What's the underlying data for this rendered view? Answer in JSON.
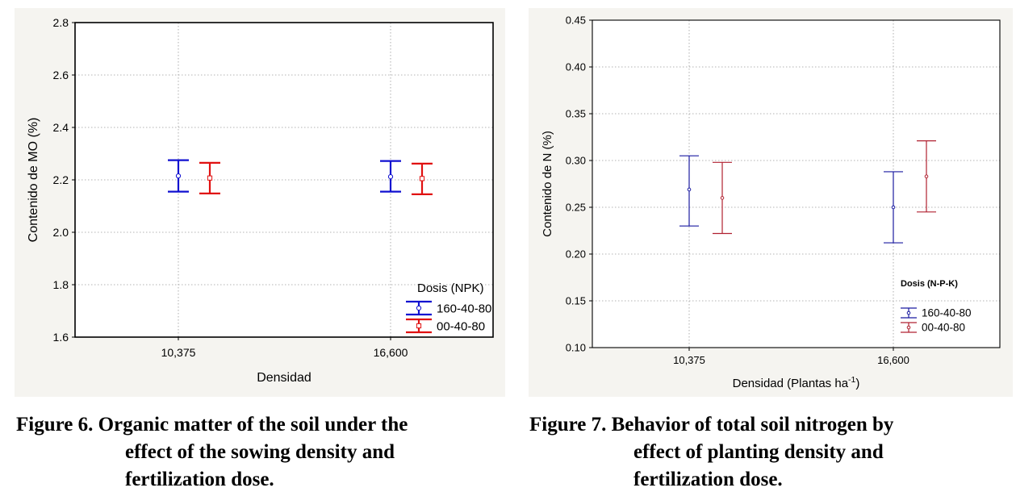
{
  "chart_data": [
    {
      "type": "scatter",
      "title": "",
      "xlabel": "Densidad",
      "ylabel": "Contenido de MO (%)",
      "categories": [
        "10,375",
        "16,600"
      ],
      "ylim": [
        1.6,
        2.8
      ],
      "yticks": [
        "1.6",
        "1.8",
        "2.0",
        "2.2",
        "2.4",
        "2.6",
        "2.8"
      ],
      "grid": true,
      "legend_title": "Dosis (NPK)",
      "legend_position": "bottom-right",
      "series": [
        {
          "name": "160-40-80",
          "color": "#1010d0",
          "marker": "circle",
          "mean": [
            2.215,
            2.212
          ],
          "lower": [
            2.155,
            2.155
          ],
          "upper": [
            2.275,
            2.272
          ]
        },
        {
          "name": "00-40-80",
          "color": "#e01010",
          "marker": "square",
          "mean": [
            2.207,
            2.205
          ],
          "lower": [
            2.148,
            2.145
          ],
          "upper": [
            2.265,
            2.262
          ]
        }
      ]
    },
    {
      "type": "scatter",
      "title": "",
      "xlabel": "Densidad (Plantas ha",
      "xlabel_sup": "-1",
      "xlabel_suffix": ")",
      "ylabel": "Contenido de N (%)",
      "categories": [
        "10,375",
        "16,600"
      ],
      "ylim": [
        0.1,
        0.45
      ],
      "yticks": [
        "0.10",
        "0.15",
        "0.20",
        "0.25",
        "0.30",
        "0.35",
        "0.40",
        "0.45"
      ],
      "grid": true,
      "legend_title": "Dosis (N-P-K)",
      "legend_position": "bottom-right",
      "series": [
        {
          "name": "160-40-80",
          "color": "#1a1aa0",
          "marker": "circle",
          "mean": [
            0.269,
            0.25
          ],
          "lower": [
            0.23,
            0.212
          ],
          "upper": [
            0.305,
            0.288
          ]
        },
        {
          "name": "00-40-80",
          "color": "#b02030",
          "marker": "circle",
          "mean": [
            0.26,
            0.283
          ],
          "lower": [
            0.222,
            0.245
          ],
          "upper": [
            0.298,
            0.321
          ]
        }
      ]
    }
  ],
  "captions": [
    {
      "line1": "Figure 6. Organic matter of the soil under the",
      "line2": "effect of the sowing density and",
      "line3": "fertilization dose."
    },
    {
      "line1": "Figure 7. Behavior of total soil nitrogen by",
      "line2": "effect of planting density and",
      "line3": "fertilization dose."
    }
  ]
}
